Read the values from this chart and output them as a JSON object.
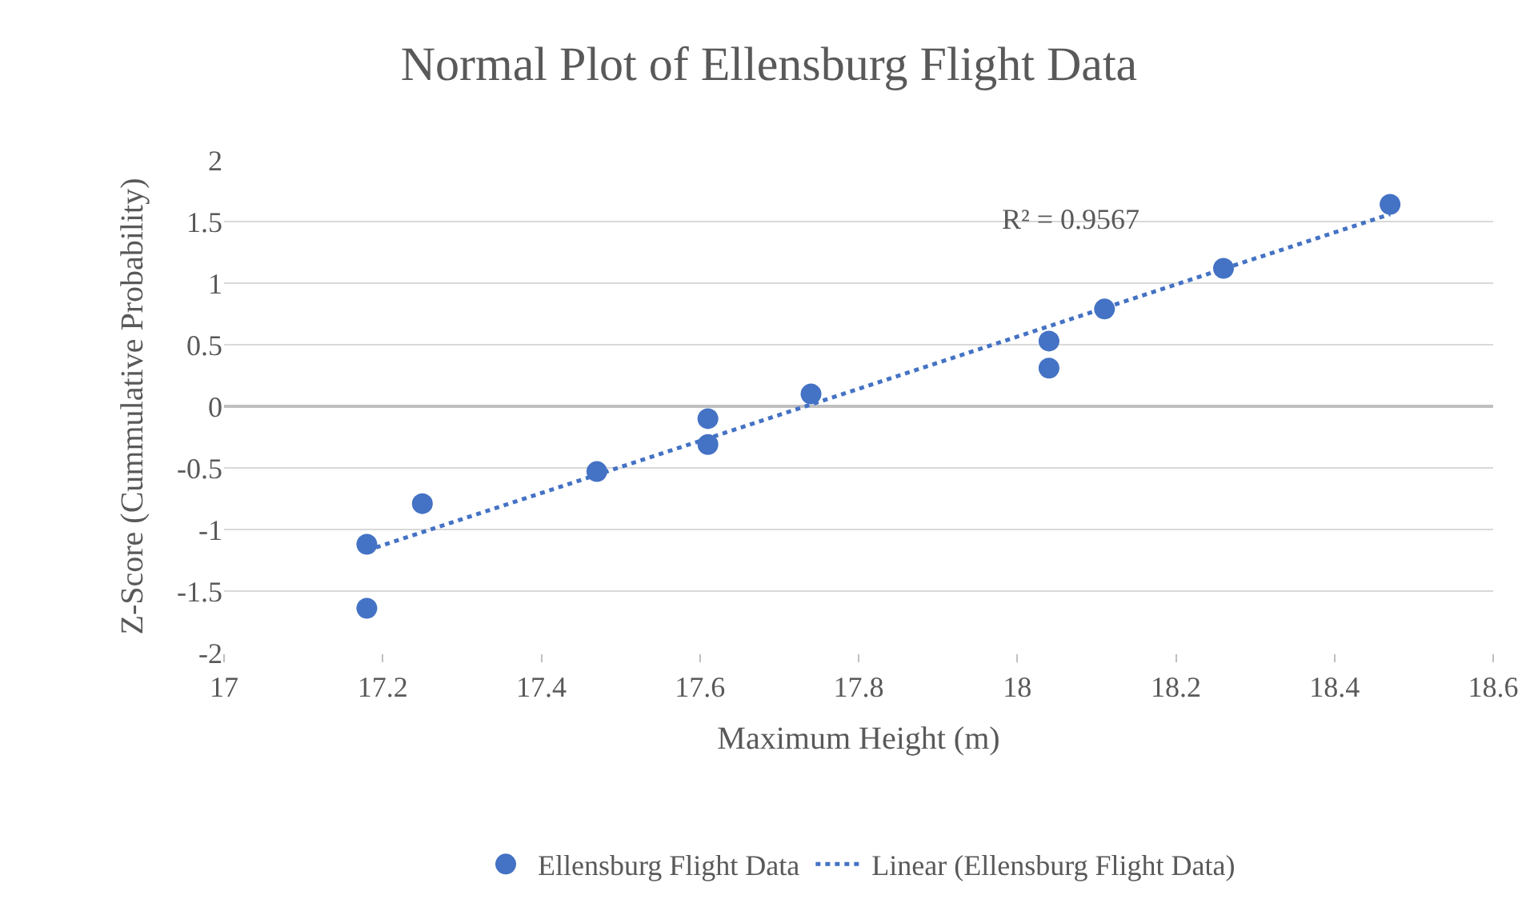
{
  "chart_data": {
    "type": "scatter",
    "title": "Normal Plot of Ellensburg Flight Data",
    "xlabel": "Maximum Height (m)",
    "ylabel": "Z-Score (Cummulative Probability)",
    "xlim": [
      17,
      18.6
    ],
    "xticks": [
      17,
      17.2,
      17.4,
      17.6,
      17.8,
      18,
      18.2,
      18.4,
      18.6
    ],
    "ylim": [
      -2,
      2
    ],
    "yticks": [
      -2,
      -1.5,
      -1,
      -0.5,
      0,
      0.5,
      1,
      1.5,
      2
    ],
    "grid": "y",
    "legend": "bottom",
    "series": [
      {
        "name": "Ellensburg Flight Data",
        "color": "#4472c4",
        "marker": "circle",
        "x": [
          17.18,
          17.18,
          17.25,
          17.47,
          17.61,
          17.61,
          17.74,
          18.04,
          18.04,
          18.11,
          18.26,
          18.47
        ],
        "values": [
          -1.64,
          -1.12,
          -0.79,
          -0.53,
          -0.31,
          -0.1,
          0.1,
          0.31,
          0.53,
          0.79,
          1.12,
          1.64
        ]
      },
      {
        "name": "Linear (Ellensburg Flight Data)",
        "color": "#4472c4",
        "type": "line",
        "line_style": "dotted",
        "x": [
          17.18,
          18.47
        ],
        "values": [
          -1.17,
          1.56
        ]
      }
    ],
    "annotations": [
      "R² = 0.9567"
    ]
  }
}
